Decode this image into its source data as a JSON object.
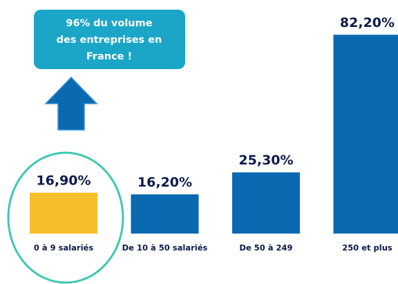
{
  "chart_data": {
    "type": "bar",
    "categories": [
      "0 à 9 salariés",
      "De 10 à 50 salariés",
      "De 50 à 249",
      "250 et plus"
    ],
    "values": [
      16.9,
      16.2,
      25.3,
      82.2
    ],
    "value_labels": [
      "16,90%",
      "16,20%",
      "25,30%",
      "82,20%"
    ],
    "colors": [
      "#f7be2b",
      "#0a69b1",
      "#0a69b1",
      "#0a69b1"
    ],
    "annotation": [
      "96% du volume",
      "des entreprises en",
      "France !"
    ]
  }
}
